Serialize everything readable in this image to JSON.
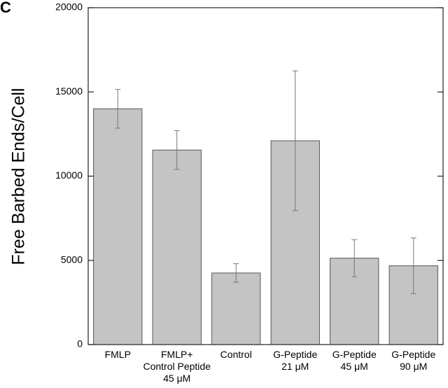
{
  "panel_label": "C",
  "chart_data": {
    "type": "bar",
    "title": "",
    "xlabel": "",
    "ylabel": "Free Barbed Ends/Cell",
    "ylim": [
      0,
      20000
    ],
    "yticks": [
      0,
      5000,
      10000,
      15000,
      20000
    ],
    "ytick_labels": [
      "0",
      "5000",
      "10000",
      "15000",
      "20000"
    ],
    "grid": false,
    "legend": "none",
    "categories": [
      [
        "FMLP"
      ],
      [
        "FMLP+",
        "Control Peptide",
        "45 μM"
      ],
      [
        "Control"
      ],
      [
        "G-Peptide",
        "21 μM"
      ],
      [
        "G-Peptide",
        "45 μM"
      ],
      [
        "G-Peptide",
        "90 μM"
      ]
    ],
    "values": [
      14000,
      11550,
      4250,
      12100,
      5130,
      4680
    ],
    "errors": [
      1150,
      1150,
      550,
      4150,
      1100,
      1650
    ],
    "bar_color": "#c4c4c4"
  }
}
